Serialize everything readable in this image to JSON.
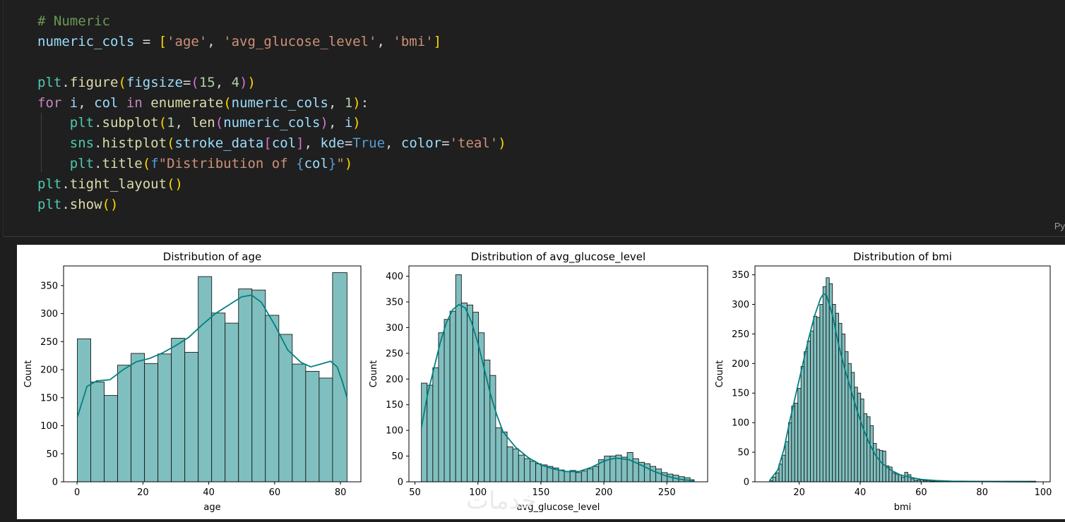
{
  "code_cell": {
    "lines": [
      [
        {
          "t": "# Numeric",
          "c": "c-com"
        }
      ],
      [
        {
          "t": "numeric_cols",
          "c": "c-var"
        },
        {
          "t": " = ",
          "c": "c-op"
        },
        {
          "t": "[",
          "c": "c-b1"
        },
        {
          "t": "'age'",
          "c": "c-str"
        },
        {
          "t": ", ",
          "c": "c-op"
        },
        {
          "t": "'avg_glucose_level'",
          "c": "c-str"
        },
        {
          "t": ", ",
          "c": "c-op"
        },
        {
          "t": "'bmi'",
          "c": "c-str"
        },
        {
          "t": "]",
          "c": "c-b1"
        }
      ],
      [],
      [
        {
          "t": "plt",
          "c": "c-mod"
        },
        {
          "t": ".",
          "c": "c-op"
        },
        {
          "t": "figure",
          "c": "c-fn"
        },
        {
          "t": "(",
          "c": "c-b1"
        },
        {
          "t": "figsize",
          "c": "c-var"
        },
        {
          "t": "=",
          "c": "c-op"
        },
        {
          "t": "(",
          "c": "c-b2"
        },
        {
          "t": "15",
          "c": "c-num"
        },
        {
          "t": ", ",
          "c": "c-op"
        },
        {
          "t": "4",
          "c": "c-num"
        },
        {
          "t": ")",
          "c": "c-b2"
        },
        {
          "t": ")",
          "c": "c-b1"
        }
      ],
      [
        {
          "t": "for",
          "c": "c-kw"
        },
        {
          "t": " ",
          "c": "c-op"
        },
        {
          "t": "i",
          "c": "c-var"
        },
        {
          "t": ", ",
          "c": "c-op"
        },
        {
          "t": "col",
          "c": "c-var"
        },
        {
          "t": " ",
          "c": "c-op"
        },
        {
          "t": "in",
          "c": "c-kw"
        },
        {
          "t": " ",
          "c": "c-op"
        },
        {
          "t": "enumerate",
          "c": "c-fn"
        },
        {
          "t": "(",
          "c": "c-b1"
        },
        {
          "t": "numeric_cols",
          "c": "c-var"
        },
        {
          "t": ", ",
          "c": "c-op"
        },
        {
          "t": "1",
          "c": "c-num"
        },
        {
          "t": ")",
          "c": "c-b1"
        },
        {
          "t": ":",
          "c": "c-op"
        }
      ],
      [
        {
          "t": "    ",
          "c": "c-op"
        },
        {
          "t": "plt",
          "c": "c-mod"
        },
        {
          "t": ".",
          "c": "c-op"
        },
        {
          "t": "subplot",
          "c": "c-fn"
        },
        {
          "t": "(",
          "c": "c-b1"
        },
        {
          "t": "1",
          "c": "c-num"
        },
        {
          "t": ", ",
          "c": "c-op"
        },
        {
          "t": "len",
          "c": "c-fn"
        },
        {
          "t": "(",
          "c": "c-b2"
        },
        {
          "t": "numeric_cols",
          "c": "c-var"
        },
        {
          "t": ")",
          "c": "c-b2"
        },
        {
          "t": ", ",
          "c": "c-op"
        },
        {
          "t": "i",
          "c": "c-var"
        },
        {
          "t": ")",
          "c": "c-b1"
        }
      ],
      [
        {
          "t": "    ",
          "c": "c-op"
        },
        {
          "t": "sns",
          "c": "c-mod"
        },
        {
          "t": ".",
          "c": "c-op"
        },
        {
          "t": "histplot",
          "c": "c-fn"
        },
        {
          "t": "(",
          "c": "c-b1"
        },
        {
          "t": "stroke_data",
          "c": "c-var"
        },
        {
          "t": "[",
          "c": "c-b2"
        },
        {
          "t": "col",
          "c": "c-var"
        },
        {
          "t": "]",
          "c": "c-b2"
        },
        {
          "t": ", ",
          "c": "c-op"
        },
        {
          "t": "kde",
          "c": "c-var"
        },
        {
          "t": "=",
          "c": "c-op"
        },
        {
          "t": "True",
          "c": "c-const"
        },
        {
          "t": ", ",
          "c": "c-op"
        },
        {
          "t": "color",
          "c": "c-var"
        },
        {
          "t": "=",
          "c": "c-op"
        },
        {
          "t": "'teal'",
          "c": "c-str"
        },
        {
          "t": ")",
          "c": "c-b1"
        }
      ],
      [
        {
          "t": "    ",
          "c": "c-op"
        },
        {
          "t": "plt",
          "c": "c-mod"
        },
        {
          "t": ".",
          "c": "c-op"
        },
        {
          "t": "title",
          "c": "c-fn"
        },
        {
          "t": "(",
          "c": "c-b1"
        },
        {
          "t": "f",
          "c": "c-const"
        },
        {
          "t": "\"Distribution of ",
          "c": "c-str"
        },
        {
          "t": "{",
          "c": "c-const"
        },
        {
          "t": "col",
          "c": "c-var"
        },
        {
          "t": "}",
          "c": "c-const"
        },
        {
          "t": "\"",
          "c": "c-str"
        },
        {
          "t": ")",
          "c": "c-b1"
        }
      ],
      [
        {
          "t": "plt",
          "c": "c-mod"
        },
        {
          "t": ".",
          "c": "c-op"
        },
        {
          "t": "tight_layout",
          "c": "c-fn"
        },
        {
          "t": "()",
          "c": "c-b1"
        }
      ],
      [
        {
          "t": "plt",
          "c": "c-mod"
        },
        {
          "t": ".",
          "c": "c-op"
        },
        {
          "t": "show",
          "c": "c-fn"
        },
        {
          "t": "()",
          "c": "c-b1"
        }
      ]
    ],
    "language_badge": "Py"
  },
  "watermark": "خدمات",
  "colors": {
    "bar_fill": "#80bfbf",
    "bar_edge": "#1a1a1a",
    "kde": "#008080"
  },
  "chart_data": [
    {
      "type": "bar",
      "title": "Distribution of age",
      "xlabel": "age",
      "ylabel": "Count",
      "xlim": [
        -4.1,
        86.2
      ],
      "ylim": [
        0,
        385
      ],
      "xticks": [
        0,
        20,
        40,
        60,
        80
      ],
      "yticks": [
        0,
        50,
        100,
        150,
        200,
        250,
        300,
        350
      ],
      "bins": {
        "edges": [
          0.08,
          4.16,
          8.24,
          12.32,
          16.4,
          20.48,
          24.56,
          28.64,
          32.72,
          36.8,
          40.88,
          44.96,
          49.04,
          53.12,
          57.2,
          61.28,
          65.36,
          69.44,
          73.52,
          77.6,
          82
        ],
        "counts": [
          255,
          178,
          154,
          208,
          229,
          211,
          228,
          256,
          231,
          366,
          301,
          283,
          344,
          342,
          297,
          263,
          210,
          197,
          185,
          373
        ]
      },
      "kde": {
        "x": [
          0.08,
          3,
          6,
          10,
          14,
          18,
          22,
          26,
          30,
          34,
          38,
          42,
          46,
          50,
          53,
          56,
          60,
          64,
          68,
          71,
          74,
          77,
          79,
          80.5,
          82
        ],
        "y": [
          115,
          170,
          180,
          182,
          200,
          214,
          220,
          230,
          243,
          258,
          280,
          300,
          315,
          330,
          333,
          320,
          280,
          235,
          213,
          205,
          210,
          215,
          205,
          180,
          150
        ]
      }
    },
    {
      "type": "bar",
      "title": "Distribution of avg_glucose_level",
      "xlabel": "avg_glucose_level",
      "ylabel": "Count",
      "xlim": [
        45.2,
        282.4
      ],
      "ylim": [
        0,
        420
      ],
      "xticks": [
        50,
        100,
        150,
        200,
        250
      ],
      "yticks": [
        0,
        50,
        100,
        150,
        200,
        250,
        300,
        350,
        400
      ],
      "bins": {
        "edges": [
          55.1,
          59.64,
          64.18,
          68.72,
          73.26,
          77.8,
          82.34,
          86.88,
          91.42,
          95.96,
          100.5,
          105.04,
          109.58,
          114.12,
          118.66,
          123.2,
          127.74,
          132.28,
          136.82,
          141.36,
          145.9,
          150.44,
          154.98,
          159.52,
          164.06,
          168.6,
          173.14,
          177.68,
          182.22,
          186.76,
          191.3,
          195.84,
          200.38,
          204.92,
          209.46,
          214,
          218.54,
          223.08,
          227.62,
          232.16,
          236.7,
          241.24,
          245.78,
          250.32,
          254.86,
          259.4,
          263.94,
          268.48,
          271.74
        ],
        "counts": [
          192,
          188,
          222,
          290,
          316,
          332,
          403,
          348,
          344,
          330,
          290,
          237,
          207,
          105,
          97,
          68,
          64,
          52,
          45,
          40,
          35,
          33,
          30,
          27,
          23,
          20,
          22,
          18,
          21,
          25,
          30,
          43,
          50,
          50,
          52,
          48,
          57,
          45,
          38,
          35,
          30,
          25,
          18,
          15,
          13,
          10,
          8,
          4
        ]
      },
      "kde": {
        "x": [
          55.1,
          60,
          65,
          70,
          75,
          80,
          85,
          90,
          95,
          100,
          105,
          110,
          115,
          120,
          130,
          140,
          150,
          160,
          170,
          180,
          190,
          200,
          205,
          210,
          220,
          230,
          240,
          250,
          260,
          271.7
        ],
        "y": [
          105,
          170,
          220,
          270,
          310,
          335,
          345,
          338,
          310,
          270,
          220,
          170,
          130,
          97,
          67,
          47,
          33,
          25,
          20,
          20,
          28,
          40,
          44,
          46,
          43,
          32,
          20,
          11,
          5,
          2
        ]
      }
    },
    {
      "type": "bar",
      "title": "Distribution of bmi",
      "xlabel": "bmi",
      "ylabel": "Count",
      "xlim": [
        5.5,
        102.3
      ],
      "ylim": [
        0,
        365
      ],
      "xticks": [
        20,
        40,
        60,
        80,
        100
      ],
      "yticks": [
        0,
        50,
        100,
        150,
        200,
        250,
        300,
        350
      ],
      "bins": {
        "edges": [
          10.3,
          11.33,
          12.36,
          13.39,
          14.42,
          15.45,
          16.48,
          17.51,
          18.54,
          19.57,
          20.6,
          21.63,
          22.66,
          23.69,
          24.72,
          25.75,
          26.78,
          27.81,
          28.84,
          29.87,
          30.9,
          31.93,
          32.96,
          33.99,
          35.02,
          36.05,
          37.08,
          38.11,
          39.14,
          40.17,
          41.2,
          42.23,
          43.26,
          44.29,
          45.32,
          46.35,
          47.38,
          48.41,
          49.44,
          50.47,
          51.5,
          52.53,
          53.56,
          54.59,
          55.62,
          56.65,
          57.68,
          58.71,
          59.74,
          60.77,
          61.8,
          62.83,
          63.86,
          64.89,
          65.92,
          97.6
        ],
        "counts": [
          2,
          8,
          15,
          30,
          45,
          68,
          100,
          128,
          133,
          158,
          195,
          220,
          238,
          255,
          280,
          278,
          300,
          330,
          345,
          335,
          300,
          285,
          268,
          250,
          220,
          200,
          185,
          160,
          150,
          140,
          115,
          110,
          95,
          65,
          55,
          53,
          52,
          27,
          25,
          15,
          13,
          12,
          8,
          16,
          12,
          5,
          3,
          3,
          3,
          2,
          2,
          1,
          1,
          1,
          1
        ]
      },
      "kde": {
        "x": [
          10.3,
          13,
          15,
          17,
          19,
          21,
          23,
          25,
          27,
          28,
          29,
          31,
          33,
          35,
          37,
          39,
          41,
          43,
          45,
          47,
          50,
          53,
          56,
          60,
          65,
          70,
          80,
          90,
          97.6
        ],
        "y": [
          2,
          20,
          55,
          105,
          150,
          195,
          240,
          280,
          310,
          318,
          315,
          280,
          230,
          190,
          155,
          120,
          90,
          65,
          45,
          32,
          20,
          12,
          8,
          4,
          2,
          1,
          0.5,
          0.2,
          0
        ]
      }
    }
  ]
}
